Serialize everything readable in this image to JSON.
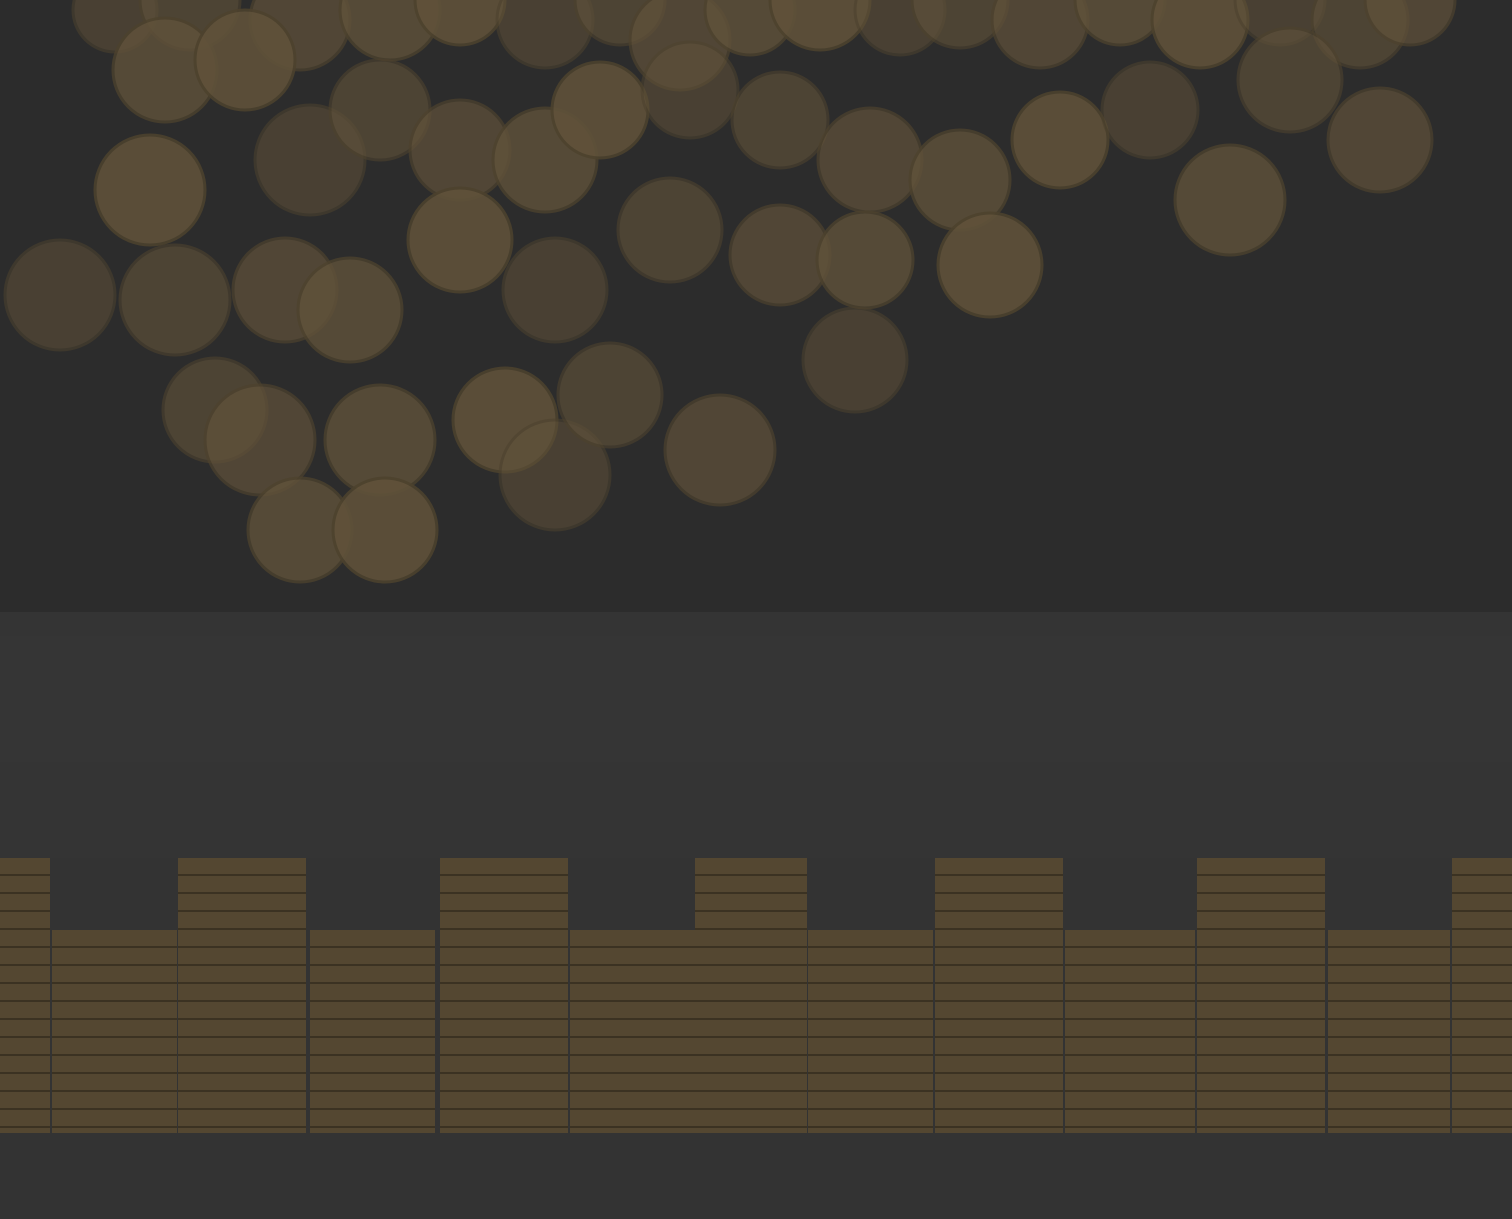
{
  "background": {
    "base_color": "#363636",
    "coin_color": "#6b5a3e",
    "coin_rim_color": "#54472f",
    "stack_color": "#5c4d33",
    "stack_line_color": "#3f3422"
  },
  "hero_image": {
    "icon": "scattered-pennies-image"
  },
  "stacks_image": {
    "icon": "coin-stacks-image"
  }
}
